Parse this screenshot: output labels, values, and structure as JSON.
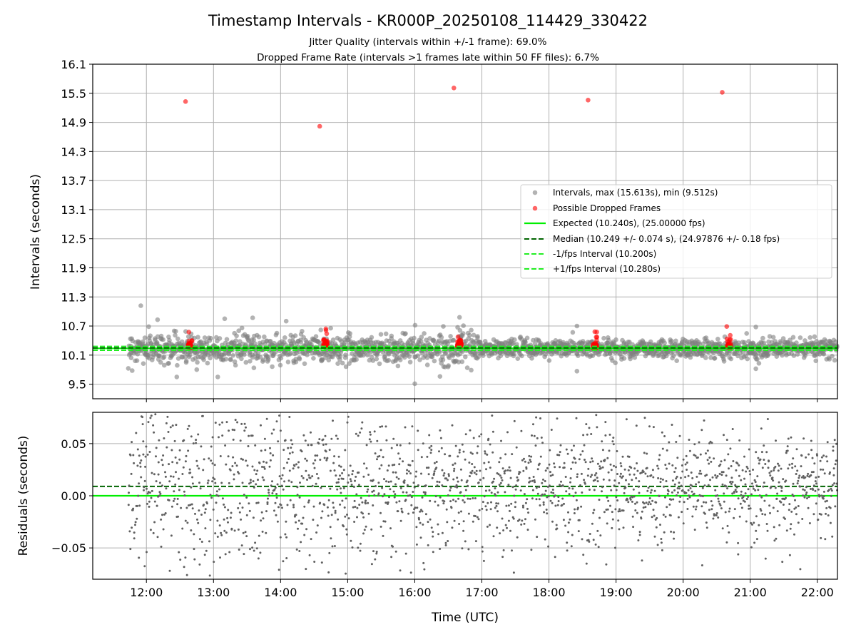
{
  "figure": {
    "title": "Timestamp Intervals - KR000P_20250108_114429_330422",
    "subtitle_1": "Jitter Quality (intervals within +/-1 frame): 69.0%",
    "subtitle_2": "Dropped Frame Rate (intervals >1 frames late within 50 FF files): 6.7%"
  },
  "colors": {
    "intervals": "#808080",
    "dropped": "#ff0000",
    "expected": "#00ee00",
    "median": "#006400",
    "bound": "#22ee22",
    "grid": "#b0b0b0"
  },
  "chart_data": [
    {
      "type": "scatter",
      "panel": "top",
      "ylabel": "Intervals (seconds)",
      "xlabel": "",
      "xlim": [
        "11:12",
        "22:18"
      ],
      "ylim": [
        9.2,
        16.1
      ],
      "yticks": [
        "9.5",
        "10.1",
        "10.7",
        "11.3",
        "11.9",
        "12.5",
        "13.1",
        "13.7",
        "14.3",
        "14.9",
        "15.5",
        "16.1"
      ],
      "xticks": [
        "12:00",
        "13:00",
        "14:00",
        "15:00",
        "16:00",
        "17:00",
        "18:00",
        "19:00",
        "20:00",
        "21:00",
        "22:00"
      ],
      "grid": true,
      "legend_position": "center-right",
      "legend": [
        {
          "label": "Intervals, max (15.613s), min (9.512s)",
          "kind": "marker",
          "color": "#808080"
        },
        {
          "label": "Possible Dropped Frames",
          "kind": "marker",
          "color": "#ff0000"
        },
        {
          "label": "Expected (10.240s), (25.00000 fps)",
          "kind": "solid",
          "color": "#00ee00"
        },
        {
          "label": "Median (10.249 +/- 0.074 s), (24.97876 +/- 0.18 fps)",
          "kind": "dashed",
          "color": "#006400"
        },
        {
          "label": "-1/fps Interval (10.200s)",
          "kind": "dashed",
          "color": "#22ee22"
        },
        {
          "label": "+1/fps Interval (10.280s)",
          "kind": "dashed",
          "color": "#22ee22"
        }
      ],
      "reference_lines": {
        "expected": 10.24,
        "median": 10.249,
        "minus_1_fps": 10.2,
        "plus_1_fps": 10.28
      },
      "intervals": {
        "time_range": [
          "11:44",
          "22:18"
        ],
        "typical_center": 10.24,
        "typical_spread": 0.12,
        "max": 15.613,
        "min": 9.512,
        "approx_count": 1900,
        "notable": [
          {
            "x": "11:55",
            "y": 11.12
          },
          {
            "x": "12:10",
            "y": 10.83
          },
          {
            "x": "12:45",
            "y": 9.8
          },
          {
            "x": "13:10",
            "y": 10.85
          },
          {
            "x": "13:35",
            "y": 10.87
          },
          {
            "x": "14:05",
            "y": 10.8
          },
          {
            "x": "16:00",
            "y": 9.51
          },
          {
            "x": "16:40",
            "y": 10.88
          },
          {
            "x": "18:25",
            "y": 10.7
          },
          {
            "x": "18:25",
            "y": 9.77
          },
          {
            "x": "21:05",
            "y": 10.68
          },
          {
            "x": "21:05",
            "y": 9.82
          }
        ]
      },
      "dropped_frames": {
        "outliers": [
          {
            "x": "12:35",
            "y": 15.33
          },
          {
            "x": "14:35",
            "y": 14.82
          },
          {
            "x": "16:35",
            "y": 15.61
          },
          {
            "x": "18:35",
            "y": 15.36
          },
          {
            "x": "20:35",
            "y": 15.52
          }
        ],
        "clusters": [
          {
            "x": "12:39",
            "y": 10.28
          },
          {
            "x": "14:40",
            "y": 10.3
          },
          {
            "x": "16:40",
            "y": 10.3
          },
          {
            "x": "18:41",
            "y": 10.26
          },
          {
            "x": "20:41",
            "y": 10.28
          }
        ]
      }
    },
    {
      "type": "scatter",
      "panel": "bottom",
      "ylabel": "Residuals (seconds)",
      "xlabel": "Time (UTC)",
      "xlim": [
        "11:12",
        "22:18"
      ],
      "ylim": [
        -0.08,
        0.08
      ],
      "yticks": [
        "−0.05",
        "0.00",
        "0.05"
      ],
      "ytick_values": [
        -0.05,
        0.0,
        0.05
      ],
      "xticks": [
        "12:00",
        "13:00",
        "14:00",
        "15:00",
        "16:00",
        "17:00",
        "18:00",
        "19:00",
        "20:00",
        "21:00",
        "22:00"
      ],
      "grid": true,
      "reference_lines": {
        "zero": 0.0,
        "median_offset": 0.009
      },
      "residuals": {
        "time_range": [
          "11:44",
          "22:18"
        ],
        "approx_count": 1900,
        "spread_early": 0.045,
        "spread_late": 0.022,
        "mean_offset": 0.009
      }
    }
  ]
}
